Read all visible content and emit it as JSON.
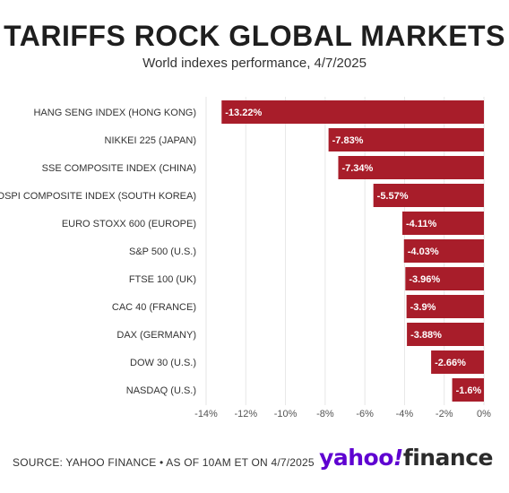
{
  "title": "TARIFFS ROCK GLOBAL MARKETS",
  "subtitle": "World indexes performance, 4/7/2025",
  "source": "SOURCE: YAHOO FINANCE • AS OF 10AM ET ON 4/7/2025",
  "logo": {
    "part1": "yahoo",
    "part2": "!",
    "part3": "finance"
  },
  "colors": {
    "bar": "#a81d2a",
    "grid": "#e6e6e6",
    "axis": "#555555"
  },
  "chart_data": {
    "type": "bar",
    "orientation": "horizontal",
    "categories": [
      "HANG SENG INDEX (HONG KONG)",
      "NIKKEI 225 (JAPAN)",
      "SSE COMPOSITE INDEX (CHINA)",
      "KOSPI COMPOSITE INDEX (SOUTH KOREA)",
      "EURO STOXX 600 (EUROPE)",
      "S&P 500 (U.S.)",
      "FTSE 100 (UK)",
      "CAC 40 (FRANCE)",
      "DAX (GERMANY)",
      "DOW 30 (U.S.)",
      "NASDAQ (U.S.)"
    ],
    "values": [
      -13.22,
      -7.83,
      -7.34,
      -5.57,
      -4.11,
      -4.03,
      -3.96,
      -3.9,
      -3.88,
      -2.66,
      -1.6
    ],
    "data_labels": [
      "-13.22%",
      "-7.83%",
      "-7.34%",
      "-5.57%",
      "-4.11%",
      "-4.03%",
      "-3.96%",
      "-3.9%",
      "-3.88%",
      "-2.66%",
      "-1.6%"
    ],
    "xlim": [
      -14,
      0
    ],
    "xticks": [
      -14,
      -12,
      -10,
      -8,
      -6,
      -4,
      -2,
      0
    ],
    "xtick_labels": [
      "-14%",
      "-12%",
      "-10%",
      "-8%",
      "-6%",
      "-4%",
      "-2%",
      "0%"
    ],
    "grid": true
  }
}
